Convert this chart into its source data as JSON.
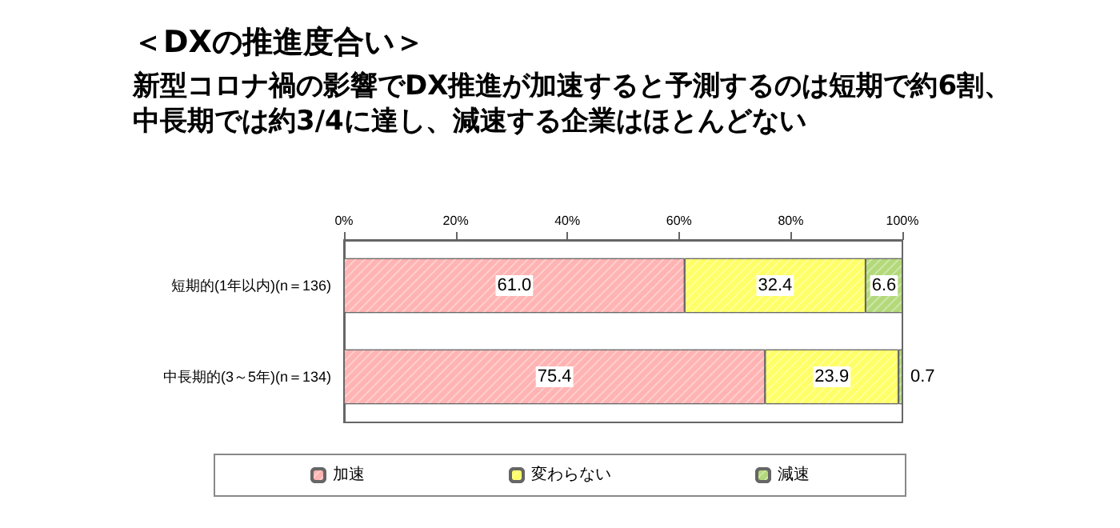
{
  "chart_data": {
    "type": "bar",
    "orientation": "horizontal",
    "stacked": true,
    "title": "＜DXの推進度合い＞",
    "subtitle": "新型コロナ禍の影響でDX推進が加速すると予測するのは短期で約6割、中長期では約3/4に達し、減速する企業はほとんどない",
    "categories": [
      "短期的(1年以内)(n＝136)",
      "中長期的(3～5年)(n＝134)"
    ],
    "series": [
      {
        "name": "加速",
        "color": "#ffb3b3",
        "values": [
          61.0,
          75.4
        ],
        "value_labels": [
          "61.0",
          "75.4"
        ]
      },
      {
        "name": "変わらない",
        "color": "#ffff66",
        "values": [
          32.4,
          23.9
        ],
        "value_labels": [
          "32.4",
          "23.9"
        ]
      },
      {
        "name": "減速",
        "color": "#b3d97a",
        "values": [
          6.6,
          0.7
        ],
        "value_labels": [
          "6.6",
          "0.7"
        ]
      }
    ],
    "xlim": [
      0,
      100
    ],
    "xticks": [
      {
        "value": 0,
        "label": "0%"
      },
      {
        "value": 20,
        "label": "20%"
      },
      {
        "value": 40,
        "label": "40%"
      },
      {
        "value": 60,
        "label": "60%"
      },
      {
        "value": 80,
        "label": "80%"
      },
      {
        "value": 100,
        "label": "100%"
      }
    ],
    "legend": "bottom",
    "grid": false
  }
}
